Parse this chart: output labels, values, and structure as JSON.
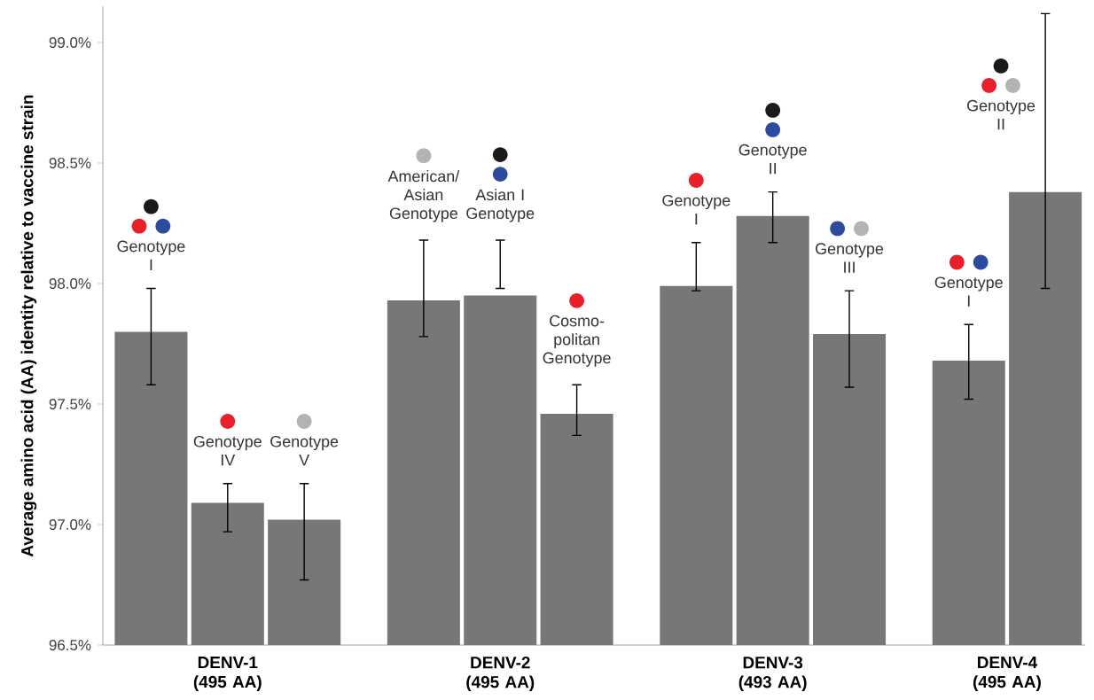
{
  "chart_data": {
    "type": "bar",
    "ylabel": "Average amino acid (AA) identity relative to vaccine strain",
    "categories": [
      "DENV-1 (495 AA)",
      "DENV-2 (495 AA)",
      "DENV-3 (493 AA)",
      "DENV-4 (495 AA)"
    ],
    "series": [
      {
        "color": "#777777",
        "values": [
          97.8,
          97.93,
          97.99,
          97.68
        ],
        "errors": [
          [
            97.58,
            97.98
          ],
          [
            97.78,
            98.18
          ],
          [
            97.97,
            98.17
          ],
          [
            97.52,
            97.83
          ]
        ]
      },
      {
        "color": "#777777",
        "values": [
          97.09,
          97.95,
          98.28,
          98.38
        ],
        "errors": [
          [
            96.97,
            97.17
          ],
          [
            97.98,
            98.18
          ],
          [
            98.17,
            98.38
          ],
          [
            97.98,
            99.12
          ]
        ]
      },
      {
        "color": "#777777",
        "values": [
          97.02,
          97.46,
          97.79,
          null
        ],
        "errors": [
          [
            96.77,
            97.17
          ],
          [
            97.37,
            97.58
          ],
          [
            97.57,
            97.97
          ],
          null
        ]
      }
    ],
    "ylim": [
      96.5,
      99.15
    ],
    "yticks": [
      {
        "value": 96.5,
        "label": "96.5%"
      },
      {
        "value": 97.0,
        "label": "97.0%"
      },
      {
        "value": 97.5,
        "label": "97.5%"
      },
      {
        "value": 98.0,
        "label": "98.0%"
      },
      {
        "value": 98.5,
        "label": "98.5%"
      },
      {
        "value": 99.0,
        "label": "99.0%"
      }
    ],
    "annotations": [
      "Genotype I",
      "Genotype IV",
      "Genotype V",
      "American/ Asian Genotype",
      "Asian I Genotype",
      "Cosmo-politan Genotype",
      "Genotype I",
      "Genotype II",
      "Genotype III",
      "Genotype I",
      "Genotype II"
    ]
  }
}
